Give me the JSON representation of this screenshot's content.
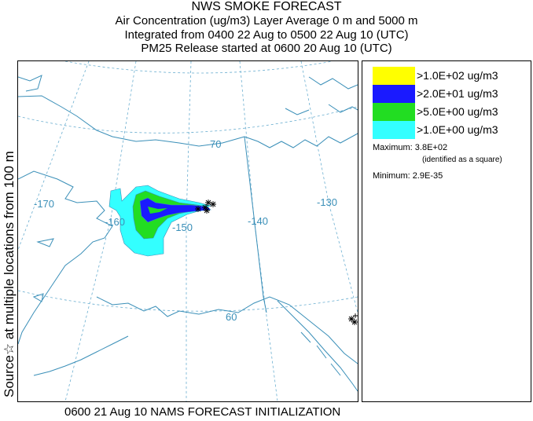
{
  "header": {
    "title": "NWS SMOKE FORECAST",
    "line2": "Air Concentration (ug/m3) Layer Average    0 m and  5000 m",
    "line3": "Integrated from 0400 22 Aug to 0500 22 Aug 10 (UTC)",
    "line4": "PM25 Release started at 0600 20 Aug 10 (UTC)"
  },
  "side_label": "Source☆   at multiple locations     from   100 m",
  "footer": "0600 21 Aug 10 NAMS FORECAST INITIALIZATION",
  "map": {
    "graticule_labels": {
      "lat70": "70",
      "lat60": "60",
      "lon170": "-170",
      "lon160": "-160",
      "lon150": "-150",
      "lon140": "-140",
      "lon130": "-130"
    },
    "colors": {
      "coast": "#3a8fb8",
      "grid": "#6aaed0",
      "cyan": "#33ffff",
      "green": "#22dd22",
      "blue": "#1a1aff",
      "yellow": "#ffff00"
    }
  },
  "legend": {
    "items": [
      {
        "label": ">1.0E+02 ug/m3",
        "color": "#ffff00"
      },
      {
        "label": ">2.0E+01 ug/m3",
        "color": "#1a1aff"
      },
      {
        "label": ">5.0E+00 ug/m3",
        "color": "#22dd22"
      },
      {
        "label": ">1.0E+00 ug/m3",
        "color": "#33ffff"
      }
    ],
    "maximum": "Maximum: 3.8E+02",
    "maximum_note": "(identified as a square)",
    "minimum": "Minimum: 2.9E-35"
  }
}
